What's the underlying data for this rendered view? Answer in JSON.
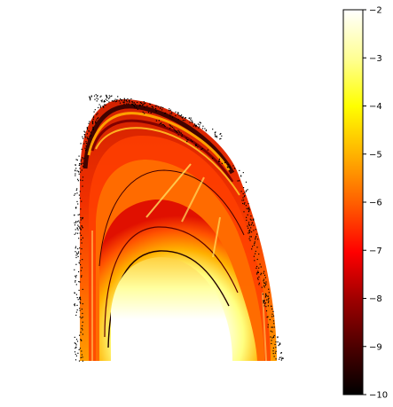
{
  "chart_data": {
    "type": "heatmap",
    "title": "",
    "xlabel": "",
    "ylabel": "",
    "axes_visible": false,
    "colormap": "hot",
    "colormap_reversed": false,
    "colors": {
      "low": "#000000",
      "mid_low": "#e00000",
      "mid": "#ff8000",
      "mid_high": "#ffff40",
      "high": "#ffffff",
      "background": "#ffffff",
      "speckle": "#000000"
    },
    "colorbar": {
      "placement": "right",
      "orientation": "vertical",
      "min": -10,
      "max": -2,
      "ticks": [
        -10,
        -9,
        -8,
        -7,
        -6,
        -5,
        -4,
        -3,
        -2
      ],
      "tick_labels": [
        "−10",
        "−9",
        "−8",
        "−7",
        "−6",
        "−5",
        "−4",
        "−3",
        "−2"
      ]
    },
    "description_values": {
      "region_shape": "parabolic arch",
      "interior_value_max": -2,
      "ridge_value_min": -10
    }
  }
}
